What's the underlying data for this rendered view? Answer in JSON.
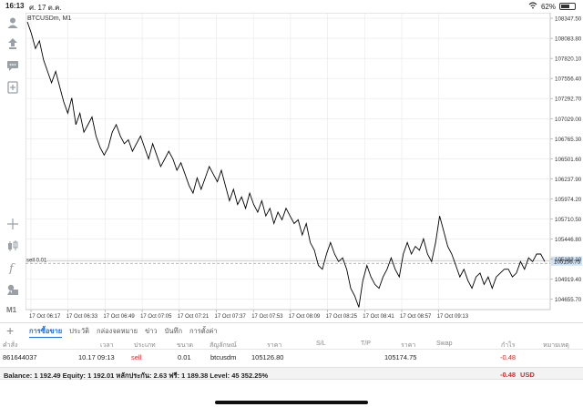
{
  "status_bar": {
    "time": "16:13",
    "date": "ศ. 17 ต.ค.",
    "wifi_icon": "wifi-icon",
    "battery": "62%",
    "battery_level": 0.62
  },
  "left_toolbar": {
    "icons": [
      "account-icon",
      "trade-icon",
      "chat-icon",
      "new-order-icon",
      "crosshair-icon",
      "candles-icon",
      "indicator-icon",
      "objects-icon"
    ],
    "timeframe": "M1"
  },
  "chart": {
    "symbol_label": "BTCUSDm, M1",
    "price_line_label": "sell 0.01",
    "current_price": "105156.75",
    "colors": {
      "line": "#000000",
      "grid": "#e8e8e8",
      "order_line": "#9e9e9e",
      "current_tag": "#cfe3f7"
    }
  },
  "tabs": {
    "plus_icon": "plus-icon",
    "items": [
      "การซื้อขาย",
      "ประวัติ",
      "กล่องจดหมาย",
      "ข่าว",
      "บันทึก",
      "การตั้งค่า"
    ],
    "active_index": 0
  },
  "table": {
    "headers": [
      "คำสั่ง",
      "เวลา",
      "ประเภท",
      "ขนาด",
      "สัญลักษณ์",
      "ราคา",
      "S/L",
      "T/P",
      "ราคา",
      "Swap",
      "กำไร",
      "หมายเหตุ"
    ],
    "row": {
      "ticket": "861644037",
      "time": "10.17 09:13",
      "type": "sell",
      "volume": "0.01",
      "symbol": "btcusdm",
      "open_price": "105126.80",
      "price": "105174.75",
      "profit": "-0.48"
    }
  },
  "balance": {
    "text": "Balance: 1 192.49 Equity: 1 192.01 หลักประกัน: 2.63 ฟรี: 1 189.38 Level: 45 352.25%",
    "profit": "-0.48",
    "currency": "USD"
  },
  "chart_data": {
    "type": "line",
    "series": [
      {
        "values": [
          108300,
          108150,
          107950,
          108050,
          107800,
          107650,
          107500,
          107650,
          107450,
          107250,
          107100,
          107300,
          106950,
          107100,
          106850,
          106950,
          107050,
          106800,
          106650,
          106550,
          106650,
          106850,
          106950,
          106800,
          106700,
          106750,
          106600,
          106700,
          106800,
          106650,
          106500,
          106700,
          106550,
          106400,
          106500,
          106600,
          106500,
          106350,
          106450,
          106300,
          106150,
          106050,
          106250,
          106100,
          106250,
          106400,
          106300,
          106200,
          106350,
          106150,
          105950,
          106100,
          105900,
          106000,
          105850,
          106050,
          105900,
          105800,
          105950,
          105750,
          105850,
          105650,
          105800,
          105700,
          105850,
          105750,
          105650,
          105700,
          105500,
          105650,
          105400,
          105300,
          105100,
          105050,
          105250,
          105400,
          105250,
          105150,
          105200,
          105050,
          104800,
          104700,
          104550,
          104900,
          105100,
          104950,
          104850,
          104800,
          104950,
          105050,
          105200,
          105050,
          104950,
          105250,
          105400,
          105250,
          105350,
          105300,
          105450,
          105250,
          105150,
          105400,
          105750,
          105550,
          105350,
          105250,
          105100,
          104950,
          105050,
          104900,
          104800,
          104950,
          105000,
          104850,
          104950,
          104800,
          104950,
          105000,
          105050,
          105050,
          104950,
          105000,
          105150,
          105050,
          105200,
          105150,
          105250,
          105250,
          105150
        ]
      }
    ],
    "x_tick_labels": [
      "17 Oct 06:17",
      "17 Oct 06:33",
      "17 Oct 06:49",
      "17 Oct 07:05",
      "17 Oct 07:21",
      "17 Oct 07:37",
      "17 Oct 07:53",
      "17 Oct 08:09",
      "17 Oct 08:25",
      "17 Oct 08:41",
      "17 Oct 08:57",
      "17 Oct 09:13"
    ],
    "y_tick_labels": [
      "108347.50",
      "108083.80",
      "107820.10",
      "107556.40",
      "107292.70",
      "107029.00",
      "106765.30",
      "106501.60",
      "106237.90",
      "105974.20",
      "105710.50",
      "105446.80",
      "105183.10",
      "104919.40",
      "104655.70"
    ],
    "ylim": [
      104520,
      108420
    ],
    "order_price": 105126.8,
    "current_price": 105156.75
  }
}
